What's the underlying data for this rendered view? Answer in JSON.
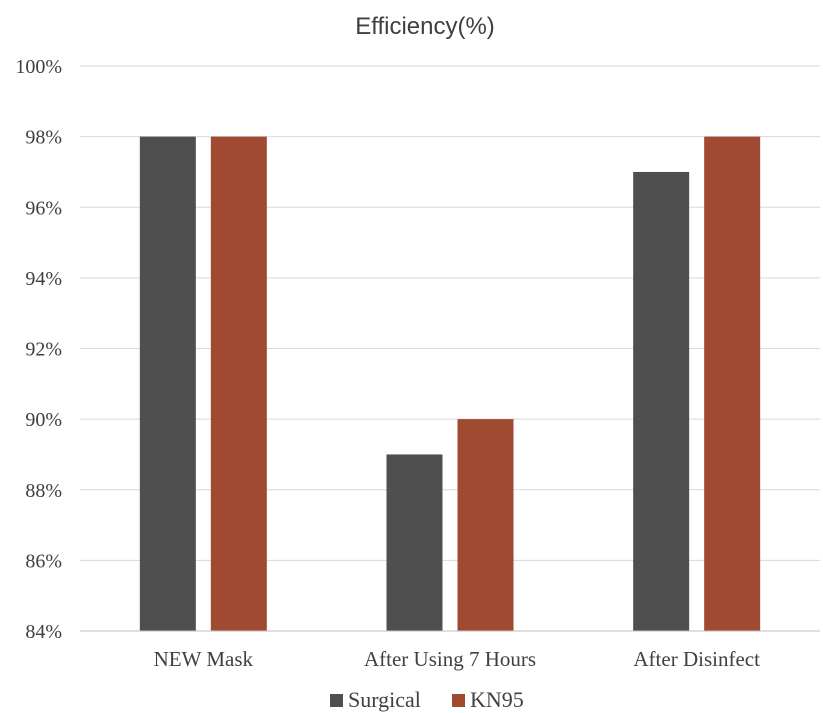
{
  "chart_data": {
    "type": "bar",
    "title": "Efficiency(%)",
    "xlabel": "",
    "ylabel": "",
    "categories": [
      "NEW Mask",
      "After Using 7 Hours",
      "After Disinfect"
    ],
    "series": [
      {
        "name": "Surgical",
        "values": [
          98,
          89,
          97
        ],
        "color": "#4f4f4f"
      },
      {
        "name": "KN95",
        "values": [
          98,
          90,
          98
        ],
        "color": "#a04a31"
      }
    ],
    "ylim": [
      84,
      100
    ],
    "yticks": [
      84,
      86,
      88,
      90,
      92,
      94,
      96,
      98,
      100
    ],
    "ytick_labels": [
      "84%",
      "86%",
      "88%",
      "90%",
      "92%",
      "94%",
      "96%",
      "98%",
      "100%"
    ],
    "grid": true,
    "legend_position": "bottom"
  }
}
